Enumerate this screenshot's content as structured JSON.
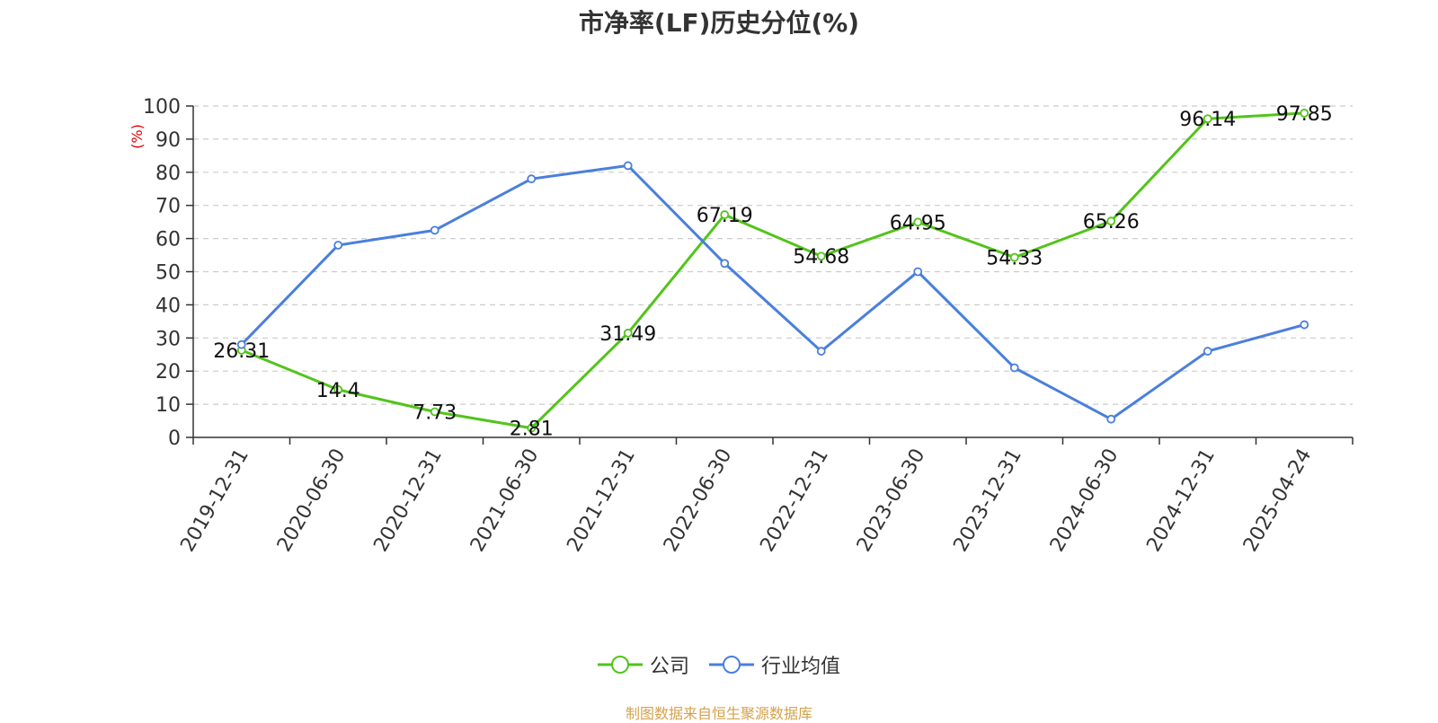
{
  "chart_data": {
    "type": "line",
    "title": "市净率(LF)历史分位(%)",
    "ylabel": "(%)",
    "ylim": [
      0,
      100
    ],
    "yticks": [
      0,
      10,
      20,
      30,
      40,
      50,
      60,
      70,
      80,
      90,
      100
    ],
    "categories": [
      "2019-12-31",
      "2020-06-30",
      "2020-12-31",
      "2021-06-30",
      "2021-12-31",
      "2022-06-30",
      "2022-12-31",
      "2023-06-30",
      "2023-12-31",
      "2024-06-30",
      "2024-12-31",
      "2025-04-24"
    ],
    "grid": true,
    "legend": "bottom-center",
    "series": [
      {
        "name": "公司",
        "color": "#52c41a",
        "values": [
          26.31,
          14.4,
          7.73,
          2.81,
          31.49,
          67.19,
          54.68,
          64.95,
          54.33,
          65.26,
          96.14,
          97.85
        ],
        "data_labels": [
          "26.31",
          "14.4",
          "7.73",
          "2.81",
          "31.49",
          "67.19",
          "54.68",
          "64.95",
          "54.33",
          "65.26",
          "96.14",
          "97.85"
        ]
      },
      {
        "name": "行业均值",
        "color": "#4a7fdc",
        "values": [
          28,
          58,
          62.5,
          78,
          82,
          52.5,
          26,
          50,
          21,
          5.5,
          26,
          34
        ]
      }
    ]
  },
  "source": "制图数据来自恒生聚源数据库",
  "colors": {
    "axis": "#333333",
    "grid": "#cccccc",
    "ylabel": "#e00000",
    "source": "#d4a24c"
  }
}
